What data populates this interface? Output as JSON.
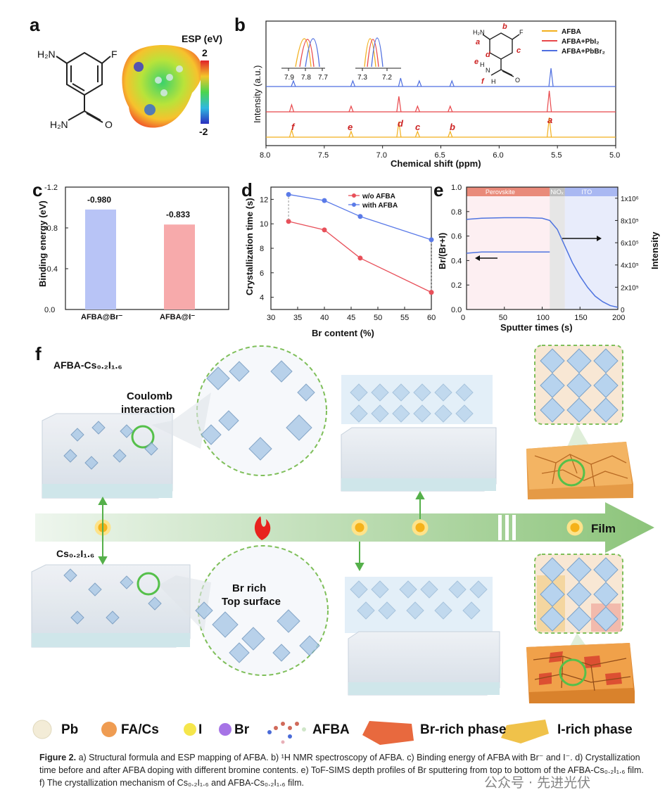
{
  "panels": {
    "a": {
      "label": "a",
      "esp_title": "ESP (eV)",
      "esp_max": "2",
      "esp_min": "-2",
      "mol_labels": {
        "nh2": "H₂N",
        "f": "F",
        "amide": "H₂N",
        "o": "O"
      }
    },
    "b": {
      "label": "b",
      "xlabel": "Chemical shift (ppm)",
      "ylabel": "Intensity (a.u.)",
      "xticks": [
        "8.0",
        "7.5",
        "7.0",
        "6.5",
        "6.0",
        "5.5",
        "5.0"
      ],
      "inset1_ticks": [
        "7.9",
        "7.8",
        "7.7"
      ],
      "inset2_ticks": [
        "7.3",
        "7.2"
      ],
      "peak_letters": [
        "f",
        "e",
        "d",
        "c",
        "b",
        "a"
      ],
      "legend": [
        "AFBA",
        "AFBA+PbI₂",
        "AFBA+PbBr₂"
      ],
      "struct_letters": {
        "a": "a",
        "b": "b",
        "c": "c",
        "d": "d",
        "e": "e",
        "f": "f",
        "nh2": "H₂N",
        "F": "F",
        "O": "O",
        "H1": "H",
        "N": "N",
        "H2": "H"
      },
      "colors": {
        "AFBA": "#f2b01e",
        "PbI2": "#e8474b",
        "PbBr2": "#4f6fe0"
      }
    },
    "c": {
      "label": "c",
      "ylabel": "Binding energy (eV)",
      "yticks": [
        "-1.2",
        "-0.8",
        "-0.4",
        "0.0"
      ]
    },
    "d": {
      "label": "d",
      "ylabel": "Crystallization time (s)",
      "xlabel": "Br content (%)",
      "xticks": [
        "30",
        "35",
        "40",
        "45",
        "50",
        "55",
        "60"
      ],
      "yticks": [
        "4",
        "6",
        "8",
        "10",
        "12"
      ]
    },
    "e": {
      "label": "e",
      "ylabel_left": "Br/(Br+I)",
      "ylabel_right": "Intensity",
      "xlabel": "Sputter times (s)",
      "xticks": [
        "0",
        "50",
        "100",
        "150",
        "200"
      ],
      "yticks_left": [
        "0.0",
        "0.2",
        "0.4",
        "0.6",
        "0.8",
        "1.0"
      ],
      "yticks_right": [
        "0",
        "2x10⁵",
        "4x10⁵",
        "6x10⁵",
        "8x10⁵",
        "1x10⁶"
      ],
      "bands": [
        "Perovskite",
        "NiOₓ",
        "ITO"
      ]
    },
    "f": {
      "label": "f",
      "top_title": "AFBA-Cs₀.₂I₁.₆",
      "bottom_title": "Cs₀.₂I₁.₆",
      "coulomb": "Coulomb\ninteraction",
      "coulomb_l1": "Coulomb",
      "coulomb_l2": "interaction",
      "br_rich_l1": "Br rich",
      "br_rich_l2": "Top surface",
      "film": "Film"
    }
  },
  "chart_data": [
    {
      "panel": "c",
      "type": "bar",
      "categories": [
        "AFBA@Br⁻",
        "AFBA@I⁻"
      ],
      "values": [
        -0.98,
        -0.833
      ],
      "value_labels": [
        "-0.980",
        "-0.833"
      ],
      "colors": [
        "#b8c4f6",
        "#f7aaab"
      ],
      "ylabel": "Binding energy (eV)",
      "ylim": [
        0,
        -1.2
      ]
    },
    {
      "panel": "d",
      "type": "line",
      "xlabel": "Br content (%)",
      "ylabel": "Crystallization time (s)",
      "xlim": [
        30,
        60
      ],
      "ylim": [
        3,
        13
      ],
      "series": [
        {
          "name": "w/o AFBA",
          "color": "#e8505a",
          "x": [
            33.3,
            40,
            46.7,
            60
          ],
          "y": [
            10.2,
            9.5,
            7.2,
            4.4
          ]
        },
        {
          "name": "with AFBA",
          "color": "#5a7ae8",
          "x": [
            33.3,
            40,
            46.7,
            60
          ],
          "y": [
            12.4,
            11.9,
            10.6,
            8.7
          ]
        }
      ]
    },
    {
      "panel": "e",
      "type": "line",
      "xlabel": "Sputter times (s)",
      "xlim": [
        0,
        200
      ],
      "series": [
        {
          "name": "Br/(Br+I)",
          "axis": "left",
          "ylim": [
            0,
            1.0
          ],
          "x": [
            0,
            20,
            50,
            80,
            100,
            110
          ],
          "y": [
            0.46,
            0.47,
            0.47,
            0.47,
            0.47,
            0.47
          ]
        },
        {
          "name": "Intensity",
          "axis": "right",
          "ylim": [
            0,
            1100000
          ],
          "x": [
            0,
            20,
            50,
            80,
            100,
            110,
            120,
            130,
            140,
            150,
            160,
            170,
            180,
            190,
            200
          ],
          "y": [
            810000,
            820000,
            825000,
            825000,
            820000,
            800000,
            720000,
            570000,
            420000,
            300000,
            200000,
            120000,
            70000,
            35000,
            20000
          ]
        }
      ]
    }
  ],
  "legend": [
    {
      "name": "Pb",
      "color": "#f3ecd7"
    },
    {
      "name": "FA/Cs",
      "color": "#ef9c52"
    },
    {
      "name": "I",
      "color": "#f5e64b"
    },
    {
      "name": "Br",
      "color": "#a674e6"
    },
    {
      "name": "AFBA",
      "color": "#d0806e"
    },
    {
      "name": "Br-rich phase",
      "color": "#e8693e"
    },
    {
      "name": "I-rich phase",
      "color": "#f0c24a"
    }
  ],
  "caption": {
    "lead": "Figure 2.",
    "text": " a) Structural formula and ESP mapping of AFBA. b) ¹H NMR spectroscopy of AFBA. c) Binding energy of AFBA with Br⁻ and I⁻. d) Crystallization time before and after AFBA doping with different bromine contents. e) ToF-SIMS depth profiles of Br sputtering from top to bottom of the AFBA-Cs₀.₂I₁.₆ film. f) The crystallization mechanism of Cs₀.₂I₁.₆ and AFBA-Cs₀.₂I₁.₆ film."
  },
  "watermark": "公众号 · 先进光伏"
}
